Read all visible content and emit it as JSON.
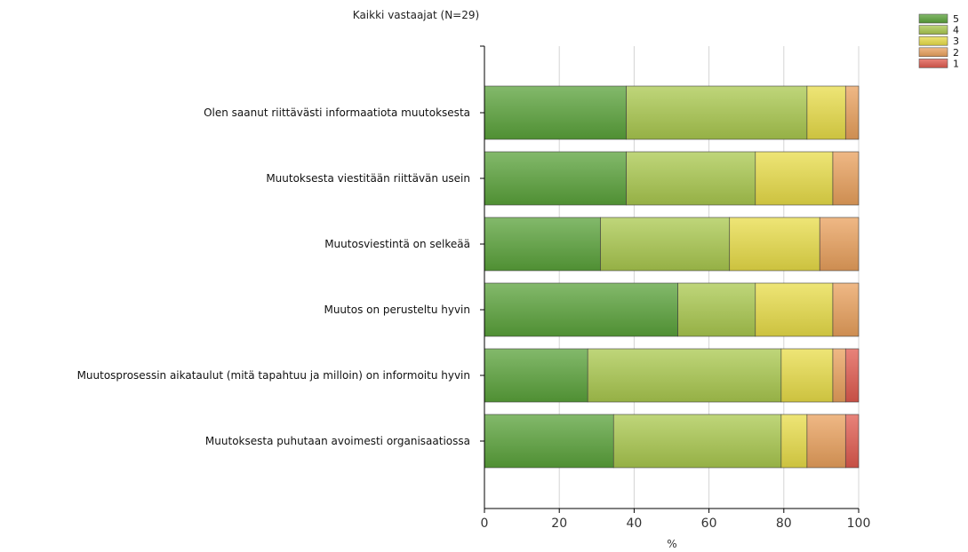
{
  "chart_data": {
    "type": "bar",
    "orientation": "horizontal",
    "stacked": true,
    "title": "Kaikki vastaajat (N=29)",
    "xlabel": "%",
    "ylabel": "",
    "xlim": [
      0,
      100
    ],
    "x_ticks": [
      "0",
      "20",
      "40",
      "60",
      "80",
      "100"
    ],
    "grid": "vertical",
    "legend_position": "top-right",
    "categories": [
      "Olen saanut riittävästi informaatiota muutoksesta",
      "Muutoksesta viestitään riittävän usein",
      "Muutosviestintä on selkeää",
      "Muutos on perusteltu hyvin",
      "Muutosprosessin aikataulut (mitä tapahtuu ja milloin) on informoitu hyvin",
      "Muutoksesta puhutaan avoimesti organisaatiossa"
    ],
    "series": [
      {
        "name": "5",
        "color": "#5aa23a",
        "values": [
          37.9,
          37.9,
          31.0,
          51.7,
          27.6,
          34.5
        ]
      },
      {
        "name": "4",
        "color": "#a9c84e",
        "values": [
          48.3,
          34.5,
          34.5,
          20.7,
          51.7,
          44.8
        ]
      },
      {
        "name": "3",
        "color": "#e8dc48",
        "values": [
          10.3,
          20.7,
          24.1,
          20.7,
          13.8,
          6.9
        ]
      },
      {
        "name": "2",
        "color": "#e9a05c",
        "values": [
          3.5,
          6.9,
          10.4,
          6.9,
          3.4,
          10.3
        ]
      },
      {
        "name": "1",
        "color": "#e05a4e",
        "values": [
          0,
          0,
          0,
          0,
          3.5,
          3.5
        ]
      }
    ]
  }
}
